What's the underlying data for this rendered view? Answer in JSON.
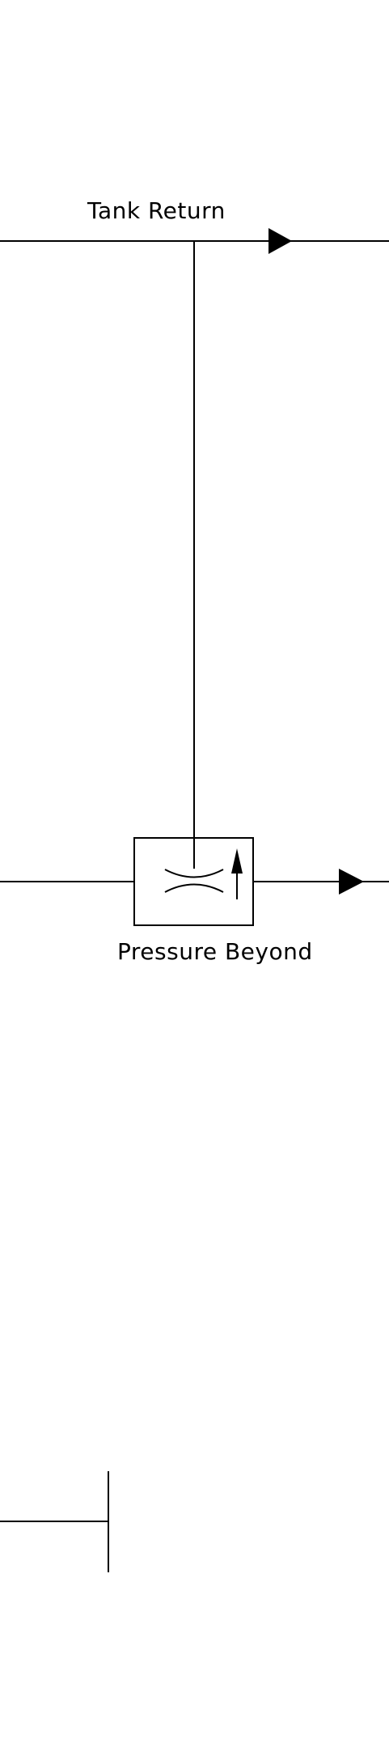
{
  "labels": {
    "tank_return": "Tank Return",
    "pressure_beyond": "Pressure Beyond"
  },
  "colors": {
    "line": "#000000",
    "background": "#ffffff"
  },
  "symbols": {
    "valve": "pressure-compensated-flow-control-valve",
    "flow_arrow": "flow-direction-arrow",
    "terminator": "line-end-cap"
  }
}
